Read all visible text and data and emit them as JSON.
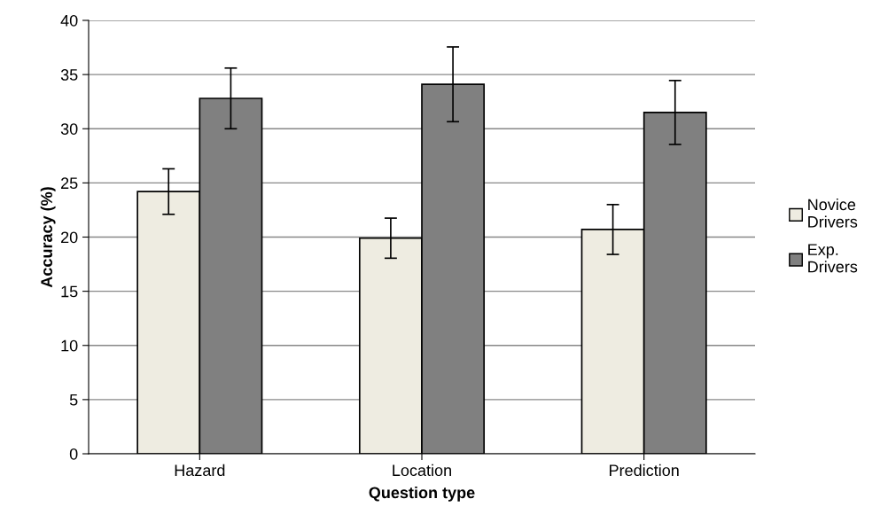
{
  "chart_data": {
    "type": "bar",
    "xlabel": "Question type",
    "ylabel": "Accuracy (%)",
    "categories": [
      "Hazard",
      "Location",
      "Prediction"
    ],
    "series": [
      {
        "name": "Novice Drivers",
        "color": "#eeece1",
        "values": [
          24.2,
          19.9,
          20.7
        ],
        "errors": [
          2.1,
          1.85,
          2.3
        ]
      },
      {
        "name": "Exp. Drivers",
        "color": "#808080",
        "values": [
          32.8,
          34.1,
          31.5
        ],
        "errors": [
          2.8,
          3.45,
          2.95
        ]
      }
    ],
    "ylim": [
      0,
      40
    ],
    "yticks": [
      0,
      5,
      10,
      15,
      20,
      25,
      30,
      35,
      40
    ],
    "grid": "y",
    "legend": "right"
  }
}
